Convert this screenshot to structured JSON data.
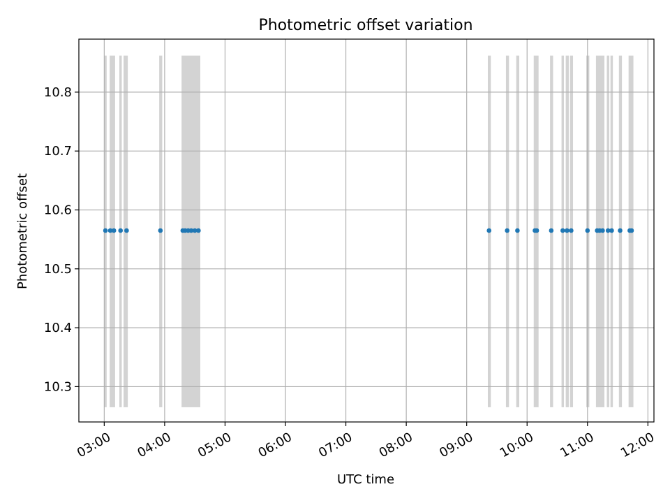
{
  "chart_data": {
    "type": "scatter",
    "title": "Photometric offset variation",
    "xlabel": "UTC time",
    "ylabel": "Photometric offset",
    "x_unit": "UTC hour of day",
    "xlim": [
      2.58,
      12.1
    ],
    "ylim": [
      10.24,
      10.89
    ],
    "x_ticks": [
      3,
      4,
      5,
      6,
      7,
      8,
      9,
      10,
      11,
      12
    ],
    "x_tick_labels": [
      "03:00",
      "04:00",
      "05:00",
      "06:00",
      "07:00",
      "08:00",
      "09:00",
      "10:00",
      "11:00",
      "12:00"
    ],
    "y_ticks": [
      10.3,
      10.4,
      10.5,
      10.6,
      10.7,
      10.8
    ],
    "y_tick_labels": [
      "10.3",
      "10.4",
      "10.5",
      "10.6",
      "10.7",
      "10.8"
    ],
    "grid": true,
    "point_color": "#1f77b4",
    "band_color": "#d3d3d3",
    "band_y_range": [
      10.265,
      10.862
    ],
    "series": [
      {
        "x": [
          3.02,
          3.1,
          3.16,
          3.27,
          3.37,
          3.93,
          4.3,
          4.34,
          4.39,
          4.44,
          4.5,
          4.56,
          9.37,
          9.67,
          9.84,
          10.13,
          10.16,
          10.4,
          10.59,
          10.66,
          10.73,
          11.0,
          11.16,
          11.2,
          11.25,
          11.34,
          11.4,
          11.54,
          11.7,
          11.73
        ],
        "y": [
          10.565,
          10.565,
          10.565,
          10.565,
          10.565,
          10.565,
          10.565,
          10.565,
          10.565,
          10.565,
          10.565,
          10.565,
          10.565,
          10.565,
          10.565,
          10.565,
          10.565,
          10.565,
          10.565,
          10.565,
          10.565,
          10.565,
          10.565,
          10.565,
          10.565,
          10.565,
          10.565,
          10.565,
          10.565,
          10.565
        ]
      }
    ],
    "bands": [
      [
        3.0,
        3.04
      ],
      [
        3.09,
        3.18
      ],
      [
        3.25,
        3.29
      ],
      [
        3.32,
        3.39
      ],
      [
        3.91,
        3.96
      ],
      [
        4.28,
        4.59
      ],
      [
        9.35,
        9.4
      ],
      [
        9.65,
        9.7
      ],
      [
        9.82,
        9.87
      ],
      [
        10.11,
        10.19
      ],
      [
        10.38,
        10.43
      ],
      [
        10.57,
        10.61
      ],
      [
        10.64,
        10.69
      ],
      [
        10.71,
        10.76
      ],
      [
        10.98,
        11.03
      ],
      [
        11.14,
        11.28
      ],
      [
        11.32,
        11.36
      ],
      [
        11.38,
        11.42
      ],
      [
        11.52,
        11.57
      ],
      [
        11.68,
        11.76
      ]
    ]
  }
}
